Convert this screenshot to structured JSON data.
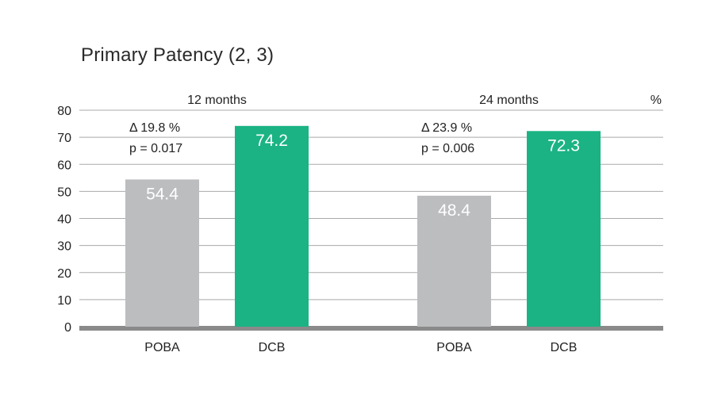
{
  "chart_data": {
    "type": "bar",
    "title": "Primary Patency (2, 3)",
    "unit_label": "%",
    "ylim": [
      0,
      80
    ],
    "yticks": [
      0,
      10,
      20,
      30,
      40,
      50,
      60,
      70,
      80
    ],
    "groups": [
      {
        "name": "12 months",
        "delta": "Δ 19.8 %",
        "p": "p = 0.017",
        "bars": [
          {
            "category": "POBA",
            "value": 54.4,
            "label": "54.4",
            "color": "#bcbdbf"
          },
          {
            "category": "DCB",
            "value": 74.2,
            "label": "74.2",
            "color": "#1bb383"
          }
        ]
      },
      {
        "name": "24 months",
        "delta": "Δ 23.9 %",
        "p": "p = 0.006",
        "bars": [
          {
            "category": "POBA",
            "value": 48.4,
            "label": "48.4",
            "color": "#bcbdbf"
          },
          {
            "category": "DCB",
            "value": 72.3,
            "label": "72.3",
            "color": "#1bb383"
          }
        ]
      }
    ],
    "grid": true,
    "legend": "none"
  }
}
